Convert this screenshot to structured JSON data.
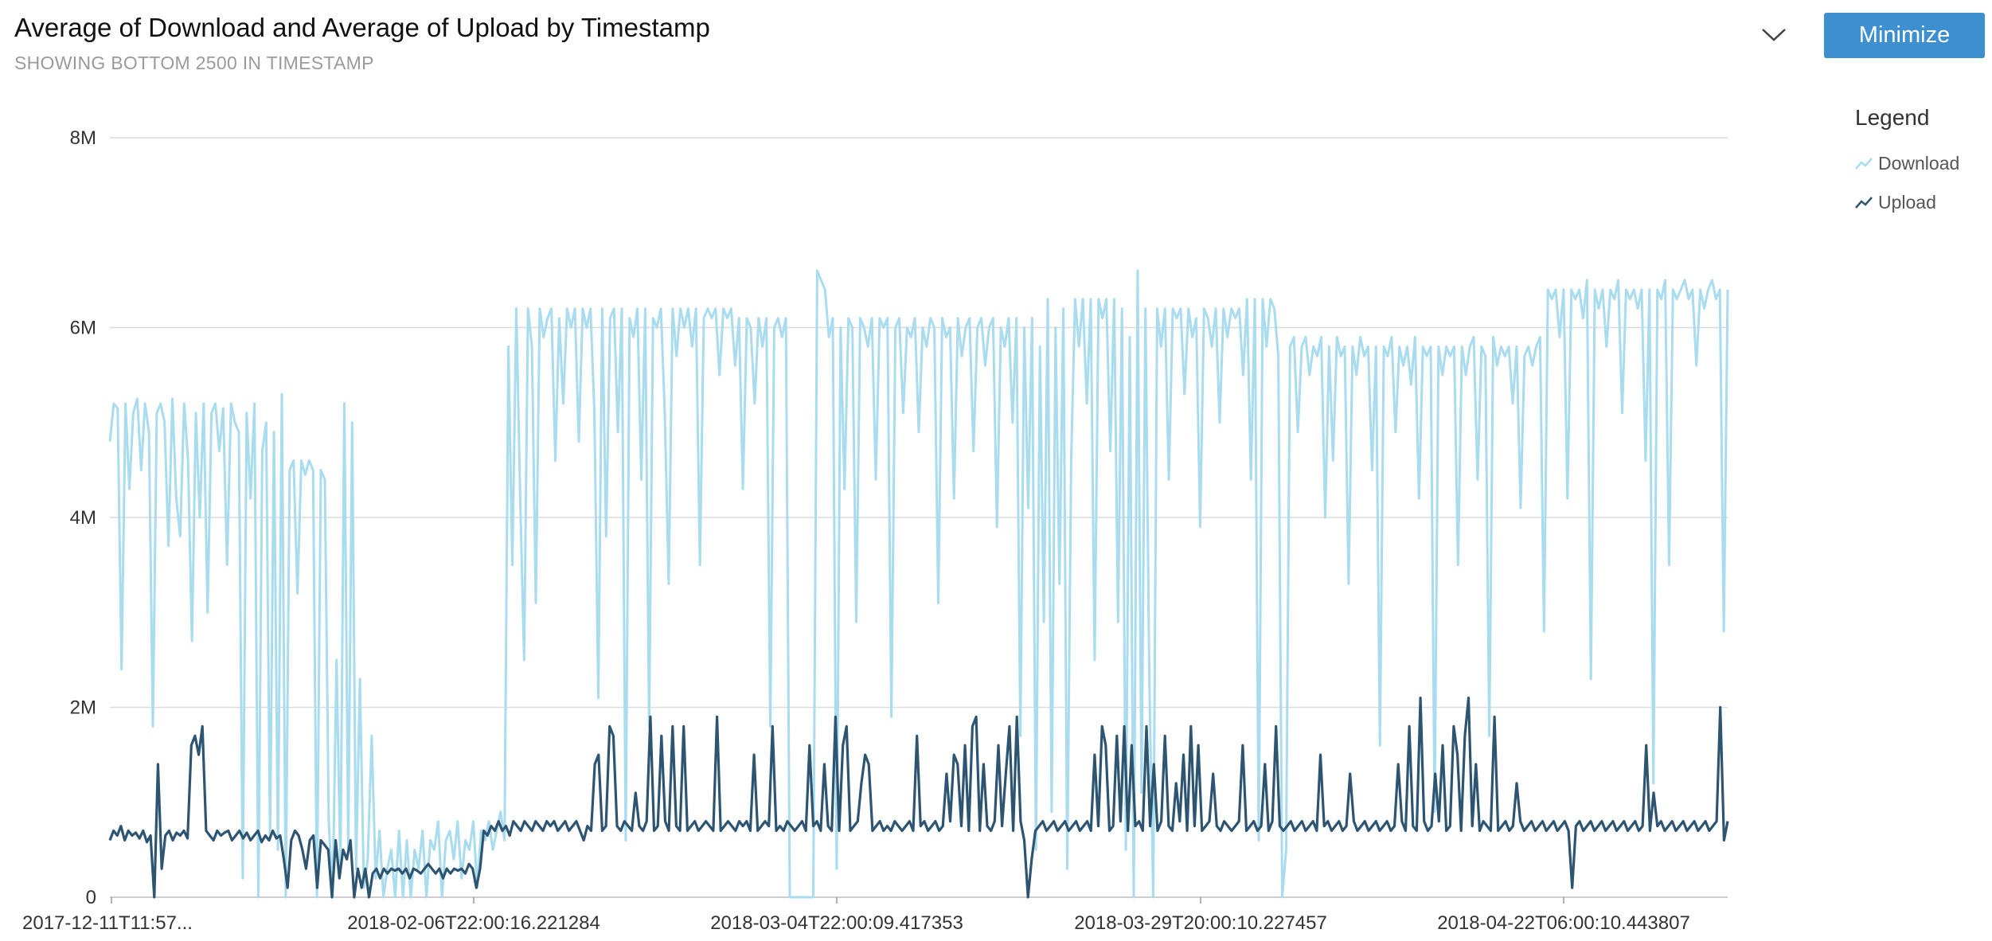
{
  "header": {
    "title": "Average of Download and Average of Upload by Timestamp",
    "subtitle": "SHOWING BOTTOM 2500 IN TIMESTAMP",
    "minimize_label": "Minimize"
  },
  "legend": {
    "title": "Legend",
    "items": [
      {
        "label": "Download",
        "color": "#a8dcee"
      },
      {
        "label": "Upload",
        "color": "#2d5572"
      }
    ]
  },
  "chart_data": {
    "type": "line",
    "title": "Average of Download and Average of Upload by Timestamp",
    "xlabel": "",
    "ylabel": "",
    "ylim": [
      0,
      8000000
    ],
    "y_ticks": [
      "0",
      "2M",
      "4M",
      "6M",
      "8M"
    ],
    "x_tick_labels": [
      "2017-12-11T11:57...",
      "2018-02-06T22:00:16.221284",
      "2018-03-04T22:00:09.417353",
      "2018-03-29T20:00:10.227457",
      "2018-04-22T06:00:10.443807"
    ],
    "grid": true,
    "legend_position": "right",
    "series": [
      {
        "name": "Download",
        "color": "#a8dcee",
        "values": [
          4800000,
          5200000,
          5150000,
          2400000,
          5200000,
          4300000,
          5100000,
          5250000,
          4500000,
          5200000,
          4900000,
          1800000,
          5100000,
          5200000,
          5000000,
          3700000,
          5250000,
          4200000,
          3800000,
          5200000,
          4600000,
          2700000,
          5100000,
          4000000,
          5200000,
          3000000,
          5100000,
          5200000,
          4700000,
          5150000,
          3500000,
          5200000,
          5000000,
          4900000,
          200000,
          5100000,
          4200000,
          5200000,
          0,
          4700000,
          5000000,
          600000,
          4900000,
          500000,
          5300000,
          0,
          4500000,
          4600000,
          3200000,
          4600000,
          4450000,
          4600000,
          4500000,
          0,
          4500000,
          4400000,
          800000,
          0,
          2500000,
          300000,
          5200000,
          500000,
          5000000,
          300000,
          2300000,
          100000,
          400000,
          1700000,
          200000,
          700000,
          0,
          300000,
          500000,
          0,
          700000,
          0,
          600000,
          0,
          500000,
          300000,
          700000,
          0,
          600000,
          500000,
          800000,
          0,
          600000,
          700000,
          400000,
          800000,
          200000,
          600000,
          500000,
          800000,
          100000,
          700000,
          600000,
          800000,
          500000,
          700000,
          900000,
          600000,
          5800000,
          3500000,
          6200000,
          4200000,
          2500000,
          6200000,
          5800000,
          3100000,
          6200000,
          5900000,
          6100000,
          6200000,
          4600000,
          6100000,
          5200000,
          6200000,
          6000000,
          6200000,
          4800000,
          6200000,
          6000000,
          6200000,
          5100000,
          2100000,
          6200000,
          3800000,
          6100000,
          6200000,
          4900000,
          6200000,
          600000,
          6100000,
          5900000,
          6200000,
          4400000,
          6200000,
          1800000,
          6100000,
          6000000,
          6200000,
          5100000,
          3300000,
          6200000,
          5700000,
          6200000,
          6000000,
          6200000,
          5800000,
          6200000,
          3500000,
          6100000,
          6200000,
          6100000,
          6200000,
          5500000,
          6200000,
          6100000,
          6200000,
          5600000,
          6100000,
          4300000,
          6100000,
          6000000,
          5200000,
          6100000,
          5800000,
          6100000,
          1800000,
          6000000,
          6100000,
          5900000,
          6100000,
          0,
          0,
          0,
          0,
          0,
          0,
          0,
          6600000,
          6500000,
          6400000,
          5900000,
          6100000,
          300000,
          6000000,
          4300000,
          6100000,
          6000000,
          2900000,
          6100000,
          6000000,
          5800000,
          6100000,
          4400000,
          6100000,
          6000000,
          6100000,
          1900000,
          6000000,
          6100000,
          5100000,
          6000000,
          5900000,
          6100000,
          4900000,
          6000000,
          5800000,
          6100000,
          6000000,
          3100000,
          6100000,
          5900000,
          6000000,
          4200000,
          6100000,
          5700000,
          6000000,
          6100000,
          4700000,
          6000000,
          6100000,
          5600000,
          6000000,
          6100000,
          3900000,
          6000000,
          5800000,
          6100000,
          5000000,
          6100000,
          1700000,
          6000000,
          4100000,
          6100000,
          500000,
          5800000,
          2900000,
          6300000,
          900000,
          6000000,
          3300000,
          6200000,
          300000,
          4600000,
          6300000,
          5800000,
          6300000,
          5200000,
          6300000,
          2500000,
          6300000,
          6100000,
          6300000,
          4700000,
          6300000,
          2900000,
          6200000,
          500000,
          5900000,
          0,
          6600000,
          1100000,
          6200000,
          2300000,
          0,
          6200000,
          5800000,
          6200000,
          4400000,
          6200000,
          6100000,
          6200000,
          5300000,
          6200000,
          5900000,
          6100000,
          3900000,
          6200000,
          6100000,
          5800000,
          6200000,
          5000000,
          6200000,
          5900000,
          6200000,
          6100000,
          6200000,
          5500000,
          6300000,
          4400000,
          6300000,
          600000,
          6300000,
          5800000,
          6300000,
          6200000,
          5700000,
          0,
          500000,
          5800000,
          5900000,
          4900000,
          5800000,
          5900000,
          5500000,
          5800000,
          5700000,
          5900000,
          4000000,
          5800000,
          4600000,
          5900000,
          5700000,
          5800000,
          3300000,
          5800000,
          5500000,
          5900000,
          5700000,
          5800000,
          4500000,
          5800000,
          1600000,
          5800000,
          5700000,
          5900000,
          4900000,
          5800000,
          5600000,
          5800000,
          5400000,
          5900000,
          4200000,
          5800000,
          5700000,
          5800000,
          900000,
          5800000,
          5500000,
          5800000,
          5700000,
          5800000,
          3500000,
          5800000,
          5500000,
          5800000,
          5900000,
          4400000,
          5800000,
          5700000,
          1700000,
          5900000,
          5600000,
          5800000,
          5700000,
          5800000,
          5200000,
          5800000,
          4100000,
          5700000,
          5800000,
          5600000,
          5800000,
          5900000,
          2800000,
          6400000,
          6300000,
          6400000,
          5900000,
          6400000,
          4200000,
          6400000,
          6300000,
          6400000,
          6100000,
          6500000,
          2300000,
          6400000,
          6200000,
          6400000,
          5800000,
          6400000,
          6300000,
          6500000,
          5100000,
          6400000,
          6300000,
          6400000,
          6200000,
          6400000,
          4600000,
          6400000,
          1200000,
          6400000,
          6300000,
          6500000,
          3500000,
          6400000,
          6300000,
          6400000,
          6500000,
          6300000,
          6400000,
          5600000,
          6400000,
          6200000,
          6400000,
          6500000,
          6300000,
          6400000,
          2800000,
          6400000
        ]
      },
      {
        "name": "Upload",
        "color": "#2d5572",
        "values": [
          600000,
          700000,
          650000,
          750000,
          600000,
          700000,
          650000,
          680000,
          620000,
          700000,
          580000,
          650000,
          0,
          1400000,
          300000,
          650000,
          700000,
          600000,
          680000,
          650000,
          700000,
          620000,
          1600000,
          1700000,
          1500000,
          1800000,
          700000,
          650000,
          600000,
          700000,
          650000,
          680000,
          700000,
          600000,
          650000,
          700000,
          620000,
          680000,
          600000,
          650000,
          700000,
          580000,
          650000,
          600000,
          700000,
          620000,
          650000,
          400000,
          100000,
          600000,
          700000,
          650000,
          500000,
          300000,
          600000,
          650000,
          100000,
          600000,
          550000,
          500000,
          0,
          600000,
          200000,
          500000,
          400000,
          600000,
          0,
          300000,
          100000,
          300000,
          0,
          250000,
          300000,
          200000,
          300000,
          250000,
          300000,
          280000,
          300000,
          250000,
          300000,
          200000,
          300000,
          280000,
          250000,
          300000,
          350000,
          300000,
          250000,
          300000,
          200000,
          300000,
          250000,
          300000,
          280000,
          300000,
          250000,
          350000,
          300000,
          100000,
          300000,
          700000,
          650000,
          750000,
          700000,
          800000,
          700000,
          750000,
          650000,
          800000,
          750000,
          700000,
          800000,
          750000,
          700000,
          800000,
          750000,
          700000,
          800000,
          750000,
          800000,
          700000,
          750000,
          800000,
          700000,
          750000,
          800000,
          700000,
          600000,
          750000,
          700000,
          1400000,
          1500000,
          700000,
          750000,
          1800000,
          1700000,
          750000,
          700000,
          800000,
          750000,
          700000,
          1100000,
          750000,
          700000,
          800000,
          1900000,
          700000,
          750000,
          1700000,
          800000,
          700000,
          1800000,
          750000,
          700000,
          1800000,
          700000,
          750000,
          800000,
          700000,
          750000,
          800000,
          750000,
          700000,
          1900000,
          700000,
          750000,
          800000,
          750000,
          700000,
          800000,
          750000,
          800000,
          700000,
          1500000,
          700000,
          750000,
          800000,
          750000,
          1800000,
          700000,
          750000,
          700000,
          800000,
          750000,
          700000,
          750000,
          800000,
          700000,
          1600000,
          750000,
          800000,
          700000,
          1400000,
          750000,
          700000,
          1900000,
          700000,
          1600000,
          1800000,
          700000,
          750000,
          800000,
          1200000,
          1500000,
          1400000,
          700000,
          750000,
          800000,
          700000,
          750000,
          700000,
          800000,
          750000,
          700000,
          750000,
          800000,
          700000,
          1700000,
          750000,
          800000,
          700000,
          750000,
          800000,
          700000,
          750000,
          1300000,
          800000,
          1500000,
          1400000,
          750000,
          1600000,
          700000,
          1800000,
          1900000,
          700000,
          1400000,
          750000,
          700000,
          800000,
          1600000,
          750000,
          1300000,
          1800000,
          700000,
          1900000,
          800000,
          600000,
          0,
          400000,
          700000,
          750000,
          800000,
          700000,
          750000,
          800000,
          700000,
          750000,
          800000,
          700000,
          750000,
          800000,
          700000,
          750000,
          800000,
          700000,
          1500000,
          750000,
          1800000,
          1600000,
          700000,
          750000,
          1700000,
          800000,
          1800000,
          700000,
          1600000,
          750000,
          800000,
          700000,
          1800000,
          750000,
          1400000,
          700000,
          800000,
          1700000,
          750000,
          700000,
          1200000,
          800000,
          1500000,
          700000,
          1800000,
          750000,
          1600000,
          700000,
          750000,
          800000,
          1300000,
          750000,
          700000,
          800000,
          750000,
          700000,
          750000,
          800000,
          1600000,
          700000,
          750000,
          800000,
          700000,
          750000,
          1400000,
          700000,
          800000,
          1800000,
          750000,
          700000,
          750000,
          800000,
          700000,
          750000,
          800000,
          700000,
          750000,
          800000,
          700000,
          1500000,
          750000,
          800000,
          700000,
          750000,
          800000,
          700000,
          750000,
          1300000,
          800000,
          700000,
          750000,
          800000,
          700000,
          750000,
          800000,
          700000,
          750000,
          800000,
          700000,
          750000,
          1400000,
          800000,
          700000,
          1800000,
          750000,
          700000,
          2100000,
          800000,
          700000,
          750000,
          1300000,
          800000,
          1600000,
          700000,
          750000,
          1800000,
          1500000,
          700000,
          1700000,
          2100000,
          750000,
          1400000,
          700000,
          800000,
          750000,
          700000,
          1900000,
          700000,
          750000,
          800000,
          700000,
          750000,
          1200000,
          800000,
          700000,
          750000,
          800000,
          700000,
          750000,
          800000,
          700000,
          750000,
          800000,
          700000,
          750000,
          800000,
          700000,
          100000,
          750000,
          800000,
          700000,
          750000,
          800000,
          700000,
          750000,
          800000,
          700000,
          750000,
          800000,
          700000,
          750000,
          800000,
          700000,
          750000,
          800000,
          700000,
          750000,
          1600000,
          700000,
          1100000,
          750000,
          800000,
          700000,
          750000,
          800000,
          700000,
          750000,
          800000,
          700000,
          750000,
          800000,
          700000,
          750000,
          800000,
          700000,
          750000,
          800000,
          2000000,
          600000,
          800000
        ]
      }
    ]
  }
}
